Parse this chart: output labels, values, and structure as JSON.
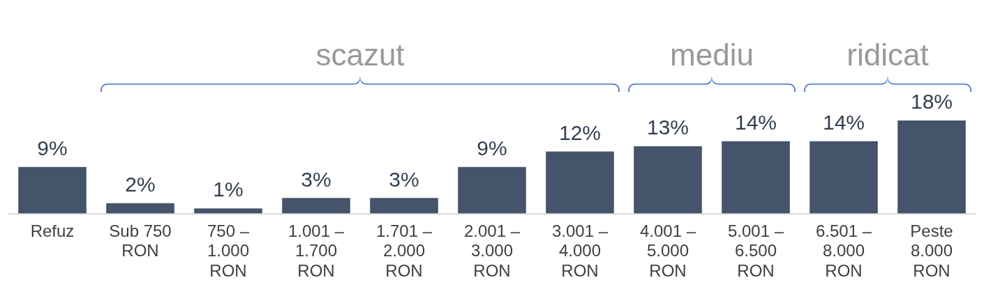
{
  "chart_data": {
    "type": "bar",
    "categories": [
      "Refuz",
      "Sub 750 RON",
      "750 – 1.000 RON",
      "1.001 – 1.700 RON",
      "1.701 – 2.000 RON",
      "2.001 – 3.000 RON",
      "3.001 – 4.000 RON",
      "4.001 – 5.000 RON",
      "5.001 – 6.500 RON",
      "6.501 – 8.000 RON",
      "Peste 8.000 RON"
    ],
    "values": [
      9,
      2,
      1,
      3,
      3,
      9,
      12,
      13,
      14,
      14,
      18
    ],
    "color": "#44546a",
    "value_labels": [
      "9%",
      "2%",
      "1%",
      "3%",
      "3%",
      "9%",
      "12%",
      "13%",
      "14%",
      "14%",
      "18%"
    ],
    "annotations": [
      "scazut",
      "mediu",
      "ridicat"
    ],
    "grid": false,
    "legend": false
  }
}
